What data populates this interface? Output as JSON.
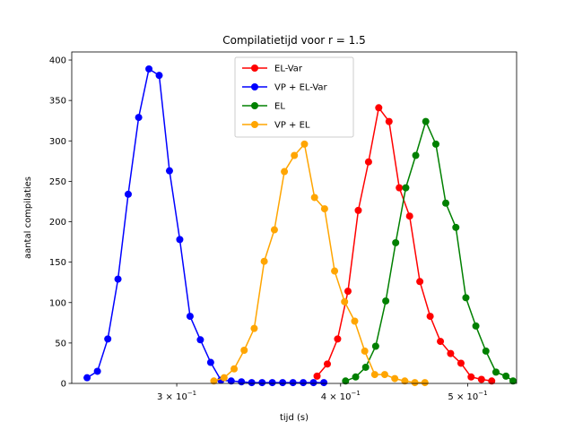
{
  "chart_data": {
    "type": "line",
    "title": "Compilatietijd voor r = 1.5",
    "xlabel": "tijd (s)",
    "ylabel": "aantal compilaties",
    "xscale": "log",
    "xlim": [
      0.2495,
      0.5448
    ],
    "ylim": [
      0,
      410
    ],
    "grid": false,
    "legend_position": "top-center",
    "x_ticks": [
      {
        "value": 0.3,
        "base": "3 × 10",
        "exp": "−1"
      },
      {
        "value": 0.4,
        "base": "4 × 10",
        "exp": "−1"
      },
      {
        "value": 0.5,
        "base": "5 × 10",
        "exp": "−1"
      }
    ],
    "y_ticks": [
      0,
      50,
      100,
      150,
      200,
      250,
      300,
      350,
      400
    ],
    "series": [
      {
        "name": "EL-Var",
        "color": "#ff0000",
        "x": [
          0.3838,
          0.3908,
          0.3979,
          0.4052,
          0.4126,
          0.4201,
          0.4277,
          0.4355,
          0.4434,
          0.4515,
          0.4597,
          0.4681,
          0.4766,
          0.4852,
          0.4941,
          0.503,
          0.5122,
          0.5215
        ],
        "values": [
          9,
          24,
          55,
          114,
          214,
          274,
          341,
          324,
          242,
          207,
          126,
          83,
          52,
          37,
          25,
          8,
          5,
          3
        ]
      },
      {
        "name": "VP + EL-Var",
        "color": "#0000ff",
        "x": [
          0.2563,
          0.261,
          0.2658,
          0.2706,
          0.2755,
          0.2806,
          0.2857,
          0.2909,
          0.2962,
          0.3016,
          0.3071,
          0.3127,
          0.3184,
          0.3242,
          0.3301,
          0.3361,
          0.3422,
          0.3485,
          0.3548,
          0.3613,
          0.3679,
          0.3746,
          0.3814,
          0.3884
        ],
        "values": [
          7,
          15,
          55,
          129,
          234,
          329,
          389,
          381,
          263,
          178,
          83,
          54,
          26,
          4,
          3,
          2,
          1,
          1,
          1,
          1,
          1,
          1,
          1,
          1
        ]
      },
      {
        "name": "EL",
        "color": "#008000",
        "x": [
          0.4035,
          0.4107,
          0.418,
          0.4254,
          0.433,
          0.4406,
          0.4485,
          0.4564,
          0.4645,
          0.4728,
          0.4811,
          0.4897,
          0.4984,
          0.5072,
          0.5162,
          0.5254,
          0.5347,
          0.5414
        ],
        "values": [
          3,
          8,
          20,
          46,
          102,
          174,
          242,
          282,
          324,
          296,
          223,
          193,
          106,
          71,
          40,
          14,
          9,
          3
        ]
      },
      {
        "name": "VP + EL",
        "color": "#ffa500",
        "x": [
          0.3202,
          0.326,
          0.3318,
          0.3377,
          0.3437,
          0.3498,
          0.3561,
          0.3624,
          0.3688,
          0.3754,
          0.3821,
          0.3889,
          0.3958,
          0.4028,
          0.41,
          0.4173,
          0.4247,
          0.4322,
          0.4399,
          0.4477,
          0.4557,
          0.4638
        ],
        "values": [
          3,
          7,
          18,
          41,
          68,
          151,
          190,
          262,
          282,
          296,
          230,
          216,
          139,
          101,
          77,
          40,
          11,
          11,
          6,
          3,
          1,
          1
        ]
      }
    ]
  }
}
